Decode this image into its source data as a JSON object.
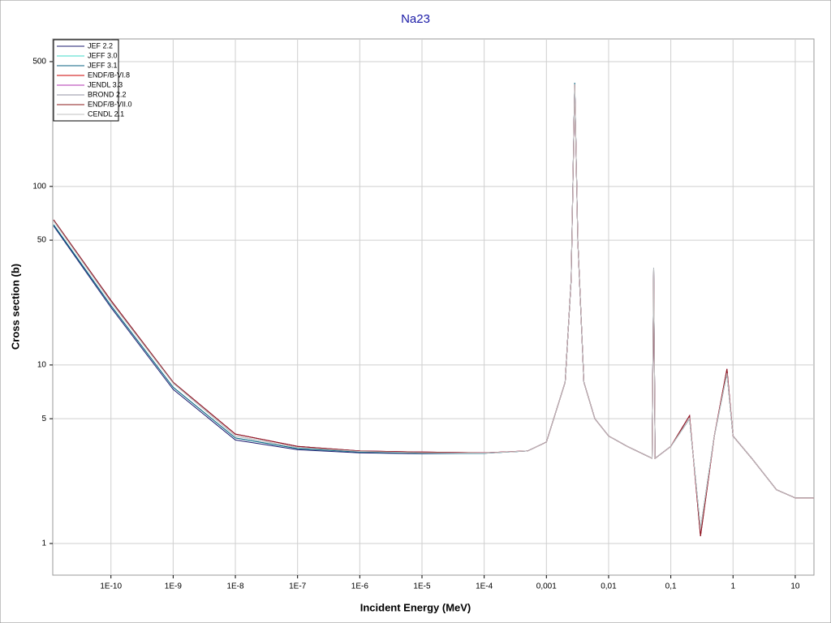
{
  "chart_data": {
    "type": "line",
    "title": "Na23",
    "x_label": "Incident Energy (MeV)",
    "y_label": "Cross section (b)",
    "log_x": true,
    "log_y": true,
    "grid": true,
    "legend": "upper left",
    "x": [
      1.2e-11,
      1e-10,
      1e-09,
      1e-08,
      1e-07,
      1e-06,
      1e-05,
      0.0001,
      0.0005,
      0.001,
      0.002,
      0.0025,
      0.00285,
      0.0032,
      0.004,
      0.006,
      0.01,
      0.02,
      0.05,
      0.053,
      0.056,
      0.1,
      0.2,
      0.3,
      0.5,
      0.8,
      1,
      2,
      5,
      10,
      20
    ],
    "series": [
      {
        "name": "JEF 2.2",
        "color": "#1a1a6e",
        "values": [
          60,
          21,
          7.3,
          3.8,
          3.35,
          3.22,
          3.18,
          3.2,
          3.3,
          3.7,
          8,
          30,
          380,
          50,
          8,
          5,
          4,
          3.5,
          3,
          35,
          3,
          3.5,
          5,
          1.2,
          4,
          9,
          4,
          3,
          2,
          1.8,
          1.8
        ]
      },
      {
        "name": "JEFF 3.0",
        "color": "#3fd8c8",
        "values": [
          61,
          21.5,
          7.5,
          3.9,
          3.4,
          3.25,
          3.2,
          3.2,
          3.3,
          3.7,
          8,
          30,
          380,
          50,
          8,
          5,
          4,
          3.5,
          3,
          35,
          3,
          3.5,
          5,
          1.2,
          4,
          9,
          4,
          3,
          2,
          1.8,
          1.8
        ]
      },
      {
        "name": "JEFF 3.1",
        "color": "#0a6080",
        "values": [
          61,
          21.5,
          7.5,
          3.9,
          3.4,
          3.25,
          3.2,
          3.2,
          3.3,
          3.7,
          8,
          30,
          380,
          50,
          8,
          5,
          4,
          3.5,
          3,
          35,
          3,
          3.5,
          5,
          1.2,
          4,
          9,
          4,
          3,
          2,
          1.8,
          1.8
        ]
      },
      {
        "name": "ENDF/B-VI.8",
        "color": "#cc0000",
        "values": [
          65,
          23,
          8,
          4.1,
          3.5,
          3.3,
          3.25,
          3.22,
          3.3,
          3.7,
          8,
          30,
          370,
          50,
          8,
          5,
          4,
          3.5,
          3,
          34,
          3,
          3.5,
          5.2,
          1.1,
          4,
          9.5,
          4,
          3,
          2,
          1.8,
          1.8
        ]
      },
      {
        "name": "JENDL 3.3",
        "color": "#b030b0",
        "values": [
          65,
          23,
          8,
          4.1,
          3.5,
          3.3,
          3.25,
          3.22,
          3.3,
          3.7,
          8,
          30,
          370,
          50,
          8,
          5,
          4,
          3.5,
          3,
          34,
          3,
          3.5,
          5.2,
          1.1,
          4,
          9.5,
          4,
          3,
          2,
          1.8,
          1.8
        ]
      },
      {
        "name": "BROND 2.2",
        "color": "#9090a0",
        "values": [
          64,
          22.5,
          7.9,
          4,
          3.45,
          3.28,
          3.22,
          3.21,
          3.3,
          3.7,
          8,
          30,
          375,
          50,
          8,
          5,
          4,
          3.5,
          3,
          35,
          3,
          3.5,
          5,
          1.2,
          4,
          9,
          4,
          3,
          2,
          1.8,
          1.8
        ]
      },
      {
        "name": "ENDF/B-VII.0",
        "color": "#8b1a1a",
        "values": [
          65,
          23,
          8,
          4.1,
          3.5,
          3.3,
          3.25,
          3.22,
          3.3,
          3.7,
          8,
          30,
          370,
          50,
          8,
          5,
          4,
          3.5,
          3,
          34,
          3,
          3.5,
          5.2,
          1.1,
          4,
          9.5,
          4,
          3,
          2,
          1.8,
          1.8
        ]
      },
      {
        "name": "CENDL 2.1",
        "color": "#c0c0c0",
        "values": [
          64,
          22.5,
          7.9,
          4,
          3.45,
          3.28,
          3.22,
          3.21,
          3.3,
          3.7,
          8,
          30,
          375,
          50,
          8,
          5,
          4,
          3.5,
          3,
          35,
          3,
          3.5,
          5,
          1.2,
          4,
          9,
          4,
          3,
          2,
          1.8,
          1.8
        ]
      }
    ],
    "xlim": [
      1.16e-11,
      20
    ],
    "xticks": [
      {
        "value": 1e-10,
        "label": "1E-10"
      },
      {
        "value": 1e-09,
        "label": "1E-9"
      },
      {
        "value": 1e-08,
        "label": "1E-8"
      },
      {
        "value": 1e-07,
        "label": "1E-7"
      },
      {
        "value": 1e-06,
        "label": "1E-6"
      },
      {
        "value": 1e-05,
        "label": "1E-5"
      },
      {
        "value": 0.0001,
        "label": "1E-4"
      },
      {
        "value": 0.001,
        "label": "0,001"
      },
      {
        "value": 0.01,
        "label": "0,01"
      },
      {
        "value": 0.1,
        "label": "0,1"
      },
      1,
      10
    ],
    "ylim": [
      0.665,
      670
    ],
    "yticks": [
      1,
      5,
      10,
      50,
      100,
      500
    ]
  }
}
